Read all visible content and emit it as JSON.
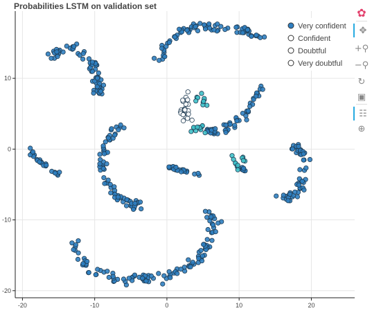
{
  "page": {
    "title": "Probabilities LSTM on validation set"
  },
  "toolbar": {
    "tools": [
      {
        "name": "bokeh-logo-icon",
        "glyph": "✿"
      },
      {
        "name": "pan-icon",
        "glyph": "✥"
      },
      {
        "name": "box-zoom-in-icon",
        "glyph": "+⚲"
      },
      {
        "name": "box-zoom-out-icon",
        "glyph": "−⚲"
      },
      {
        "name": "reset-icon",
        "glyph": "↻"
      },
      {
        "name": "save-icon",
        "glyph": "▣"
      },
      {
        "name": "hover-icon",
        "glyph": "☷"
      },
      {
        "name": "crosshair-icon",
        "glyph": "⊕"
      }
    ]
  },
  "chart_data": {
    "type": "scatter",
    "title": "Probabilities LSTM on validation set",
    "xlabel": "",
    "ylabel": "",
    "xlim": [
      -21,
      26
    ],
    "ylim": [
      -21,
      19.5
    ],
    "xticks": [
      -20,
      -10,
      0,
      10,
      20
    ],
    "yticks": [
      -20,
      -10,
      0,
      10
    ],
    "grid": true,
    "legend_position": "top-right",
    "legend": [
      {
        "label": "Very confident",
        "color": "#2f7fc1"
      },
      {
        "label": "Confident",
        "color": "#ffffff"
      },
      {
        "label": "Doubtful",
        "color": "#ffffff"
      },
      {
        "label": "Very doubtful",
        "color": "#ffffff"
      }
    ],
    "clusters": [
      {
        "category": "Very confident",
        "color": "#2f7fc1",
        "kind": "curve",
        "width": 0.35,
        "n": 70,
        "points": [
          [
            -16,
            13
          ],
          [
            -15,
            14
          ],
          [
            -13,
            14.5
          ],
          [
            -11,
            13
          ],
          [
            -10,
            11.5
          ],
          [
            -9.5,
            9.5
          ],
          [
            -9.5,
            7.5
          ]
        ]
      },
      {
        "category": "Very confident",
        "color": "#2f7fc1",
        "kind": "curve",
        "width": 0.35,
        "n": 80,
        "points": [
          [
            -1,
            12.5
          ],
          [
            0,
            15
          ],
          [
            2,
            16.5
          ],
          [
            4,
            17.3
          ],
          [
            6,
            17.5
          ],
          [
            8,
            17.2
          ],
          [
            10,
            16.8
          ],
          [
            12,
            16.3
          ],
          [
            13,
            15.6
          ]
        ]
      },
      {
        "category": "Very confident",
        "color": "#2f7fc1",
        "kind": "curve",
        "width": 0.3,
        "n": 55,
        "points": [
          [
            5,
            2.8
          ],
          [
            7,
            2.5
          ],
          [
            9,
            3.2
          ],
          [
            11,
            5
          ],
          [
            12.5,
            7.5
          ],
          [
            13.5,
            8.8
          ]
        ]
      },
      {
        "category": "Confident",
        "color": "#ffffff",
        "kind": "curve",
        "width": 0.4,
        "n": 30,
        "points": [
          [
            3,
            7.5
          ],
          [
            2.5,
            6.5
          ],
          [
            2.5,
            5
          ],
          [
            3,
            4
          ]
        ]
      },
      {
        "category": "Confident",
        "color": "#3fc1c9",
        "kind": "blob",
        "width": 0.4,
        "n": 10,
        "points": [
          [
            4.8,
            6.9
          ]
        ]
      },
      {
        "category": "Confident",
        "color": "#3fc1c9",
        "kind": "curve",
        "width": 0.3,
        "n": 10,
        "points": [
          [
            3.3,
            3.2
          ],
          [
            5,
            2.8
          ]
        ]
      },
      {
        "category": "Very confident",
        "color": "#2f7fc1",
        "kind": "curve",
        "width": 0.15,
        "n": 26,
        "points": [
          [
            -19.2,
            0
          ],
          [
            -17.5,
            -2
          ],
          [
            -15.1,
            -3.6
          ]
        ]
      },
      {
        "category": "Very confident",
        "color": "#2f7fc1",
        "kind": "curve",
        "width": 0.35,
        "n": 80,
        "points": [
          [
            -6.5,
            3.5
          ],
          [
            -8.5,
            1
          ],
          [
            -9,
            -3
          ],
          [
            -8,
            -5.5
          ],
          [
            -6,
            -7.5
          ],
          [
            -3.5,
            -8
          ]
        ]
      },
      {
        "category": "Very confident",
        "color": "#2f7fc1",
        "kind": "curve",
        "width": 0.12,
        "n": 24,
        "points": [
          [
            0,
            -2.5
          ],
          [
            2,
            -3
          ],
          [
            4.3,
            -3.6
          ]
        ]
      },
      {
        "category": "Confident",
        "color": "#3fc1c9",
        "kind": "blob",
        "width": 0.5,
        "n": 12,
        "points": [
          [
            9.8,
            -1.8
          ]
        ]
      },
      {
        "category": "Very confident",
        "color": "#2f7fc1",
        "kind": "curve",
        "width": 0.15,
        "n": 8,
        "points": [
          [
            10,
            -2.5
          ],
          [
            11,
            -3.2
          ]
        ]
      },
      {
        "category": "Very confident",
        "color": "#2f7fc1",
        "kind": "curve",
        "width": 0.35,
        "n": 55,
        "points": [
          [
            17.5,
            0.6
          ],
          [
            19,
            -1
          ],
          [
            19,
            -4
          ],
          [
            18,
            -6.2
          ],
          [
            16,
            -6.5
          ]
        ]
      },
      {
        "category": "Very confident",
        "color": "#2f7fc1",
        "kind": "curve",
        "width": 0.4,
        "n": 120,
        "points": [
          [
            -13,
            -12.5
          ],
          [
            -12.5,
            -15
          ],
          [
            -10.5,
            -17
          ],
          [
            -7,
            -18.5
          ],
          [
            -4,
            -18.3
          ],
          [
            -1,
            -18
          ],
          [
            2,
            -17
          ],
          [
            4.5,
            -15.5
          ],
          [
            6,
            -13
          ],
          [
            6.8,
            -10.5
          ],
          [
            5.5,
            -8.7
          ]
        ]
      }
    ]
  }
}
